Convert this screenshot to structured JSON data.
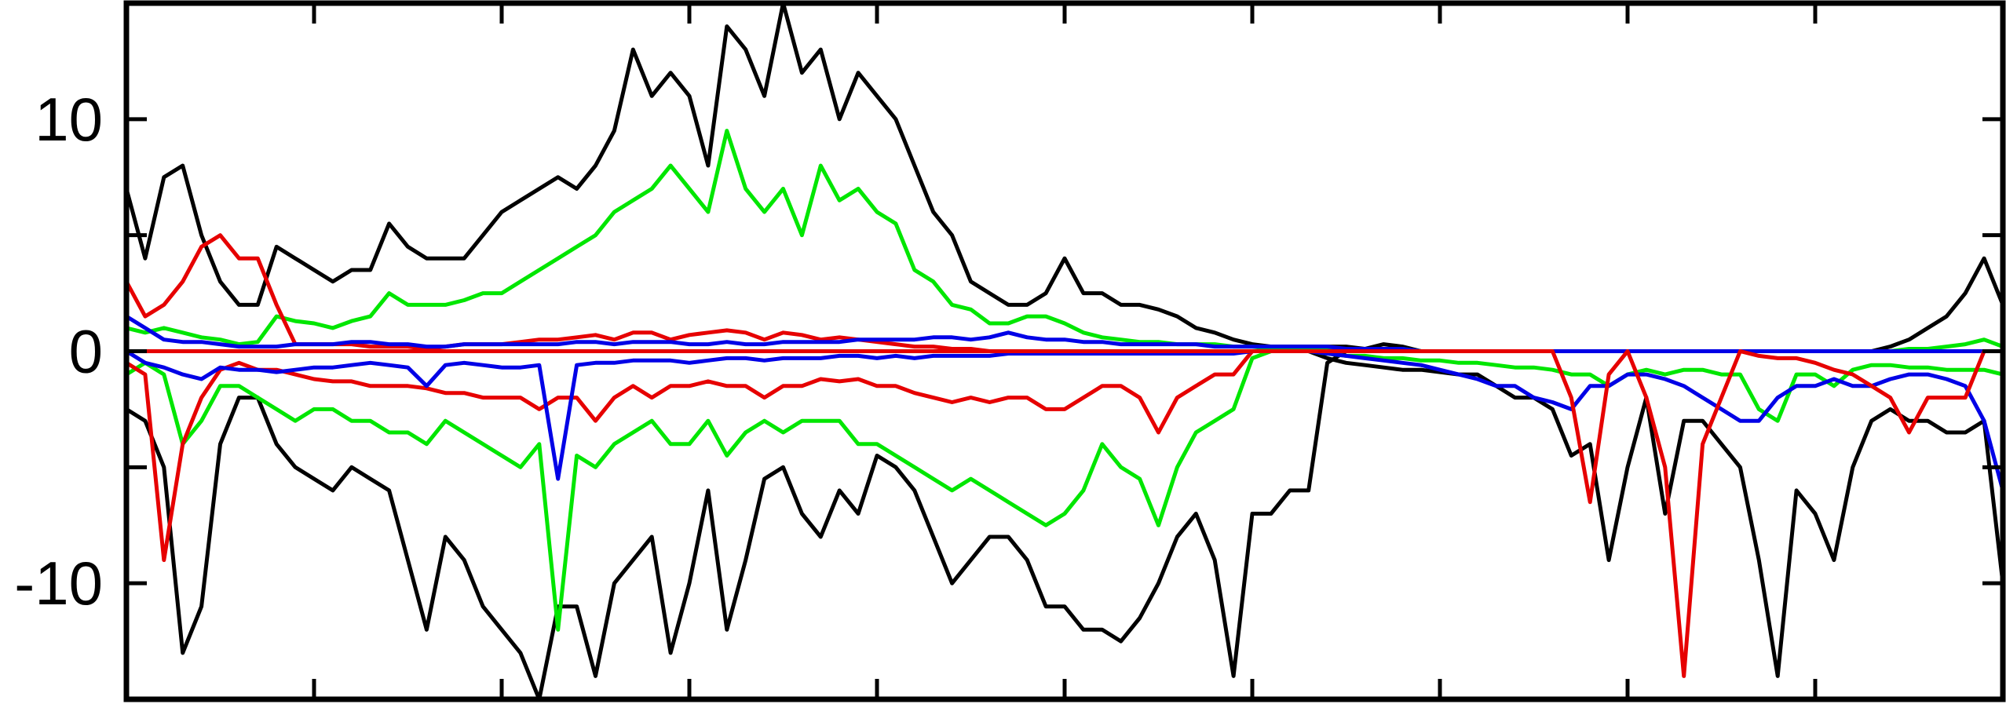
{
  "chart_data": {
    "type": "line",
    "title": "",
    "xlabel": "",
    "ylabel": "",
    "xlim": [
      0,
      200
    ],
    "ylim": [
      -15,
      15
    ],
    "yticks": [
      -10,
      0,
      10
    ],
    "ytick_labels": [
      "-10",
      "0",
      "10"
    ],
    "xticks_unlabeled": [
      0,
      20,
      40,
      60,
      80,
      100,
      120,
      140,
      160,
      180,
      200
    ],
    "yticks_minor": [
      -15,
      -5,
      5,
      15
    ],
    "grid": false,
    "legend": "none",
    "x": [
      0,
      2,
      4,
      6,
      8,
      10,
      12,
      14,
      16,
      18,
      20,
      22,
      24,
      26,
      28,
      30,
      32,
      34,
      36,
      38,
      40,
      42,
      44,
      46,
      48,
      50,
      52,
      54,
      56,
      58,
      60,
      62,
      64,
      66,
      68,
      70,
      72,
      74,
      76,
      78,
      80,
      82,
      84,
      86,
      88,
      90,
      92,
      94,
      96,
      98,
      100,
      102,
      104,
      106,
      108,
      110,
      112,
      114,
      116,
      118,
      120,
      122,
      124,
      126,
      128,
      130,
      132,
      134,
      136,
      138,
      140,
      142,
      144,
      146,
      148,
      150,
      152,
      154,
      156,
      158,
      160,
      162,
      164,
      166,
      168,
      170,
      172,
      174,
      176,
      178,
      180,
      182,
      184,
      186,
      188,
      190,
      192,
      194,
      196,
      198,
      200
    ],
    "series": [
      {
        "color": "#000000",
        "values": [
          7,
          4,
          7.5,
          8,
          5,
          3,
          2,
          2,
          4.5,
          4,
          3.5,
          3,
          3.5,
          3.5,
          5.5,
          4.5,
          4,
          4,
          4,
          5,
          6,
          6.5,
          7,
          7.5,
          7,
          8,
          9.5,
          13,
          11,
          12,
          11,
          8,
          14,
          13,
          11,
          15,
          12,
          13,
          10,
          12,
          11,
          10,
          8,
          6,
          5,
          3,
          2.5,
          2,
          2,
          2.5,
          4,
          2.5,
          2.5,
          2,
          2,
          1.8,
          1.5,
          1,
          0.8,
          0.5,
          0.3,
          0.2,
          0.2,
          0.2,
          0.2,
          0.2,
          0.1,
          0.3,
          0.2,
          0,
          0,
          0,
          0,
          0,
          0,
          0,
          0,
          0,
          0,
          0,
          0,
          0,
          0,
          0,
          0,
          0,
          0,
          0,
          0,
          0,
          0,
          0,
          0,
          0,
          0.2,
          0.5,
          1,
          1.5,
          2.5,
          4,
          2
        ]
      },
      {
        "color": "#00e600",
        "values": [
          1,
          0.8,
          1,
          0.8,
          0.6,
          0.5,
          0.3,
          0.4,
          1.5,
          1.3,
          1.2,
          1,
          1.3,
          1.5,
          2.5,
          2,
          2,
          2,
          2.2,
          2.5,
          2.5,
          3,
          3.5,
          4,
          4.5,
          5,
          6,
          6.5,
          7,
          8,
          7,
          6,
          9.5,
          7,
          6,
          7,
          5,
          8,
          6.5,
          7,
          6,
          5.5,
          3.5,
          3,
          2,
          1.8,
          1.2,
          1.2,
          1.5,
          1.5,
          1.2,
          0.8,
          0.6,
          0.5,
          0.4,
          0.4,
          0.3,
          0.3,
          0.3,
          0.2,
          0.2,
          0.1,
          0.1,
          0.1,
          0.1,
          0.1,
          0.1,
          0.1,
          0.1,
          0,
          0,
          0,
          0,
          0,
          0,
          0,
          0,
          0,
          0,
          0,
          0,
          0,
          0,
          0,
          0,
          0,
          0,
          0,
          0,
          0,
          0,
          0,
          0,
          0,
          0,
          0.1,
          0.1,
          0.2,
          0.3,
          0.5,
          0.2
        ]
      },
      {
        "color": "#e60000",
        "values": [
          3,
          1.5,
          2,
          3,
          4.5,
          5,
          4,
          4,
          2,
          0.3,
          0.3,
          0.3,
          0.3,
          0.2,
          0.2,
          0.2,
          0.1,
          0.2,
          0.3,
          0.3,
          0.3,
          0.4,
          0.5,
          0.5,
          0.6,
          0.7,
          0.5,
          0.8,
          0.8,
          0.5,
          0.7,
          0.8,
          0.9,
          0.8,
          0.5,
          0.8,
          0.7,
          0.5,
          0.6,
          0.5,
          0.4,
          0.3,
          0.2,
          0.2,
          0.1,
          0.1,
          0,
          0,
          0,
          0,
          0,
          0,
          0,
          0,
          0,
          0,
          0,
          0,
          0,
          0,
          0,
          0,
          0,
          0,
          0,
          0,
          0,
          0,
          0,
          0,
          0,
          0,
          0,
          0,
          0,
          0,
          0,
          0,
          0,
          0,
          0,
          0,
          0,
          0,
          0,
          0,
          0,
          0,
          0,
          0,
          0,
          0,
          0,
          0,
          0,
          0,
          0,
          0,
          0,
          0,
          0
        ]
      },
      {
        "color": "#0000e6",
        "values": [
          1.5,
          1,
          0.5,
          0.4,
          0.4,
          0.3,
          0.2,
          0.2,
          0.2,
          0.3,
          0.3,
          0.3,
          0.4,
          0.4,
          0.3,
          0.3,
          0.2,
          0.2,
          0.3,
          0.3,
          0.3,
          0.3,
          0.3,
          0.3,
          0.4,
          0.4,
          0.3,
          0.4,
          0.4,
          0.4,
          0.3,
          0.3,
          0.4,
          0.3,
          0.3,
          0.4,
          0.4,
          0.4,
          0.4,
          0.5,
          0.5,
          0.5,
          0.5,
          0.6,
          0.6,
          0.5,
          0.6,
          0.8,
          0.6,
          0.5,
          0.5,
          0.4,
          0.4,
          0.3,
          0.3,
          0.3,
          0.3,
          0.3,
          0.2,
          0.2,
          0.2,
          0.2,
          0.2,
          0.2,
          0.2,
          0.1,
          0.1,
          0.1,
          0.1,
          0,
          0,
          0,
          0,
          0,
          0,
          0,
          0,
          0,
          0,
          0,
          0,
          0,
          0,
          0,
          0,
          0,
          0,
          0,
          0,
          0,
          0,
          0,
          0,
          0,
          0,
          0,
          0,
          0,
          0,
          0,
          0
        ]
      },
      {
        "color": "#000000",
        "values": [
          -2.5,
          -3,
          -5,
          -13,
          -11,
          -4,
          -2,
          -2,
          -4,
          -5,
          -5.5,
          -6,
          -5,
          -5.5,
          -6,
          -9,
          -12,
          -8,
          -9,
          -11,
          -12,
          -13,
          -15,
          -11,
          -11,
          -14,
          -10,
          -9,
          -8,
          -13,
          -10,
          -6,
          -12,
          -9,
          -5.5,
          -5,
          -7,
          -8,
          -6,
          -7,
          -4.5,
          -5,
          -6,
          -8,
          -10,
          -9,
          -8,
          -8,
          -9,
          -11,
          -11,
          -12,
          -12,
          -12.5,
          -11.5,
          -10,
          -8,
          -7,
          -9,
          -14,
          -7,
          -7,
          -6,
          -6,
          -0.5,
          0,
          0,
          0,
          0,
          0,
          0,
          0,
          0,
          0,
          0,
          0,
          0,
          0,
          0,
          0,
          0,
          0,
          0,
          0,
          0,
          0,
          0,
          0,
          0,
          0,
          0,
          0,
          0,
          0,
          0,
          0,
          0,
          0,
          0,
          0,
          0
        ]
      },
      {
        "color": "#00e600",
        "values": [
          -1,
          -0.5,
          -1,
          -4,
          -3,
          -1.5,
          -1.5,
          -2,
          -2.5,
          -3,
          -2.5,
          -2.5,
          -3,
          -3,
          -3.5,
          -3.5,
          -4,
          -3,
          -3.5,
          -4,
          -4.5,
          -5,
          -4,
          -12,
          -4.5,
          -5,
          -4,
          -3.5,
          -3,
          -4,
          -4,
          -3,
          -4.5,
          -3.5,
          -3,
          -3.5,
          -3,
          -3,
          -3,
          -4,
          -4,
          -4.5,
          -5,
          -5.5,
          -6,
          -5.5,
          -6,
          -6.5,
          -7,
          -7.5,
          -7,
          -6,
          -4,
          -5,
          -5.5,
          -7.5,
          -5,
          -3.5,
          -3,
          -2.5,
          -0.3,
          0,
          0,
          0,
          0,
          0,
          0,
          0,
          0,
          0,
          0,
          0,
          0,
          0,
          0,
          0,
          0,
          0,
          0,
          0,
          0,
          0,
          0,
          0,
          0,
          0,
          0,
          0,
          0,
          0,
          0,
          0,
          0,
          0,
          0,
          0,
          0,
          0,
          0,
          0,
          0
        ]
      },
      {
        "color": "#e60000",
        "values": [
          -0.5,
          -1,
          -9,
          -4,
          -2,
          -0.8,
          -0.5,
          -0.8,
          -0.8,
          -1,
          -1.2,
          -1.3,
          -1.3,
          -1.5,
          -1.5,
          -1.5,
          -1.6,
          -1.8,
          -1.8,
          -2,
          -2,
          -2,
          -2.5,
          -2,
          -2,
          -3,
          -2,
          -1.5,
          -2,
          -1.5,
          -1.5,
          -1.3,
          -1.5,
          -1.5,
          -2,
          -1.5,
          -1.5,
          -1.2,
          -1.3,
          -1.2,
          -1.5,
          -1.5,
          -1.8,
          -2,
          -2.2,
          -2,
          -2.2,
          -2,
          -2,
          -2.5,
          -2.5,
          -2,
          -1.5,
          -1.5,
          -2,
          -3.5,
          -2,
          -1.5,
          -1,
          -1,
          0,
          0,
          0,
          0,
          0,
          0,
          0,
          0,
          0,
          0,
          0,
          0,
          0,
          0,
          0,
          0,
          0,
          0,
          0,
          0,
          0,
          0,
          0,
          0,
          0,
          0,
          0,
          0,
          0,
          0,
          0,
          0,
          0,
          0,
          0,
          0,
          0,
          0,
          0,
          0,
          0
        ]
      },
      {
        "color": "#0000e6",
        "values": [
          0,
          -0.5,
          -0.7,
          -1,
          -1.2,
          -0.7,
          -0.8,
          -0.8,
          -0.9,
          -0.8,
          -0.7,
          -0.7,
          -0.6,
          -0.5,
          -0.6,
          -0.7,
          -1.5,
          -0.6,
          -0.5,
          -0.6,
          -0.7,
          -0.7,
          -0.6,
          -5.5,
          -0.6,
          -0.5,
          -0.5,
          -0.4,
          -0.4,
          -0.4,
          -0.5,
          -0.4,
          -0.3,
          -0.3,
          -0.4,
          -0.3,
          -0.3,
          -0.3,
          -0.2,
          -0.2,
          -0.3,
          -0.2,
          -0.3,
          -0.2,
          -0.2,
          -0.2,
          -0.2,
          -0.1,
          -0.1,
          -0.1,
          -0.1,
          -0.1,
          -0.1,
          -0.1,
          -0.1,
          -0.1,
          -0.1,
          -0.1,
          -0.1,
          -0.1,
          0,
          0,
          0,
          0,
          0,
          0,
          0,
          0,
          0,
          0,
          0,
          0,
          0,
          0,
          0,
          0,
          0,
          0,
          0,
          0,
          0,
          0,
          0,
          0,
          0,
          0,
          0,
          0,
          0,
          0,
          0,
          0,
          0,
          0,
          0,
          0,
          0,
          0,
          0,
          0,
          0
        ]
      },
      {
        "color": "#000000",
        "values": [
          0,
          0,
          0,
          0,
          0,
          0,
          0,
          0,
          0,
          0,
          0,
          0,
          0,
          0,
          0,
          0,
          0,
          0,
          0,
          0,
          0,
          0,
          0,
          0,
          0,
          0,
          0,
          0,
          0,
          0,
          0,
          0,
          0,
          0,
          0,
          0,
          0,
          0,
          0,
          0,
          0,
          0,
          0,
          0,
          0,
          0,
          0,
          0,
          0,
          0,
          0,
          0,
          0,
          0,
          0,
          0,
          0,
          0,
          0,
          0,
          0,
          0,
          0,
          0,
          -0.3,
          -0.5,
          -0.6,
          -0.7,
          -0.8,
          -0.8,
          -0.9,
          -1,
          -1,
          -1.5,
          -2,
          -2,
          -2.5,
          -4.5,
          -4,
          -9,
          -5,
          -2,
          -7,
          -3,
          -3,
          -4,
          -5,
          -9,
          -14,
          -6,
          -7,
          -9,
          -5,
          -3,
          -2.5,
          -3,
          -3,
          -3.5,
          -3.5,
          -3,
          -10
        ]
      },
      {
        "color": "#00e600",
        "values": [
          0,
          0,
          0,
          0,
          0,
          0,
          0,
          0,
          0,
          0,
          0,
          0,
          0,
          0,
          0,
          0,
          0,
          0,
          0,
          0,
          0,
          0,
          0,
          0,
          0,
          0,
          0,
          0,
          0,
          0,
          0,
          0,
          0,
          0,
          0,
          0,
          0,
          0,
          0,
          0,
          0,
          0,
          0,
          0,
          0,
          0,
          0,
          0,
          0,
          0,
          0,
          0,
          0,
          0,
          0,
          0,
          0,
          0,
          0,
          0,
          0,
          0,
          0,
          0,
          -0.1,
          -0.2,
          -0.2,
          -0.3,
          -0.3,
          -0.4,
          -0.4,
          -0.5,
          -0.5,
          -0.6,
          -0.7,
          -0.7,
          -0.8,
          -1,
          -1,
          -1.5,
          -1,
          -0.8,
          -1,
          -0.8,
          -0.8,
          -1,
          -1,
          -2.5,
          -3,
          -1,
          -1,
          -1.5,
          -0.8,
          -0.6,
          -0.6,
          -0.7,
          -0.7,
          -0.8,
          -0.8,
          -0.8,
          -1
        ]
      },
      {
        "color": "#0000e6",
        "values": [
          0,
          0,
          0,
          0,
          0,
          0,
          0,
          0,
          0,
          0,
          0,
          0,
          0,
          0,
          0,
          0,
          0,
          0,
          0,
          0,
          0,
          0,
          0,
          0,
          0,
          0,
          0,
          0,
          0,
          0,
          0,
          0,
          0,
          0,
          0,
          0,
          0,
          0,
          0,
          0,
          0,
          0,
          0,
          0,
          0,
          0,
          0,
          0,
          0,
          0,
          0,
          0,
          0,
          0,
          0,
          0,
          0,
          0,
          0,
          0,
          0,
          0,
          0,
          0,
          -0.1,
          -0.2,
          -0.3,
          -0.4,
          -0.5,
          -0.6,
          -0.8,
          -1,
          -1.2,
          -1.5,
          -1.5,
          -2,
          -2.2,
          -2.5,
          -1.5,
          -1.5,
          -1,
          -1,
          -1.2,
          -1.5,
          -2,
          -2.5,
          -3,
          -3,
          -2,
          -1.5,
          -1.5,
          -1.2,
          -1.5,
          -1.5,
          -1.2,
          -1,
          -1,
          -1.2,
          -1.5,
          -3,
          -6
        ]
      },
      {
        "color": "#e60000",
        "values": [
          0,
          0,
          0,
          0,
          0,
          0,
          0,
          0,
          0,
          0,
          0,
          0,
          0,
          0,
          0,
          0,
          0,
          0,
          0,
          0,
          0,
          0,
          0,
          0,
          0,
          0,
          0,
          0,
          0,
          0,
          0,
          0,
          0,
          0,
          0,
          0,
          0,
          0,
          0,
          0,
          0,
          0,
          0,
          0,
          0,
          0,
          0,
          0,
          0,
          0,
          0,
          0,
          0,
          0,
          0,
          0,
          0,
          0,
          0,
          0,
          0,
          0,
          0,
          0,
          0,
          0,
          0,
          0,
          0,
          0,
          0,
          0,
          0,
          0,
          0,
          0,
          0,
          -2,
          -6.5,
          -1,
          0,
          -2,
          -5,
          -14,
          -4,
          -2,
          0,
          -0.2,
          -0.3,
          -0.3,
          -0.5,
          -0.8,
          -1,
          -1.5,
          -2,
          -3.5,
          -2,
          -2,
          -2,
          0,
          0
        ]
      }
    ]
  }
}
